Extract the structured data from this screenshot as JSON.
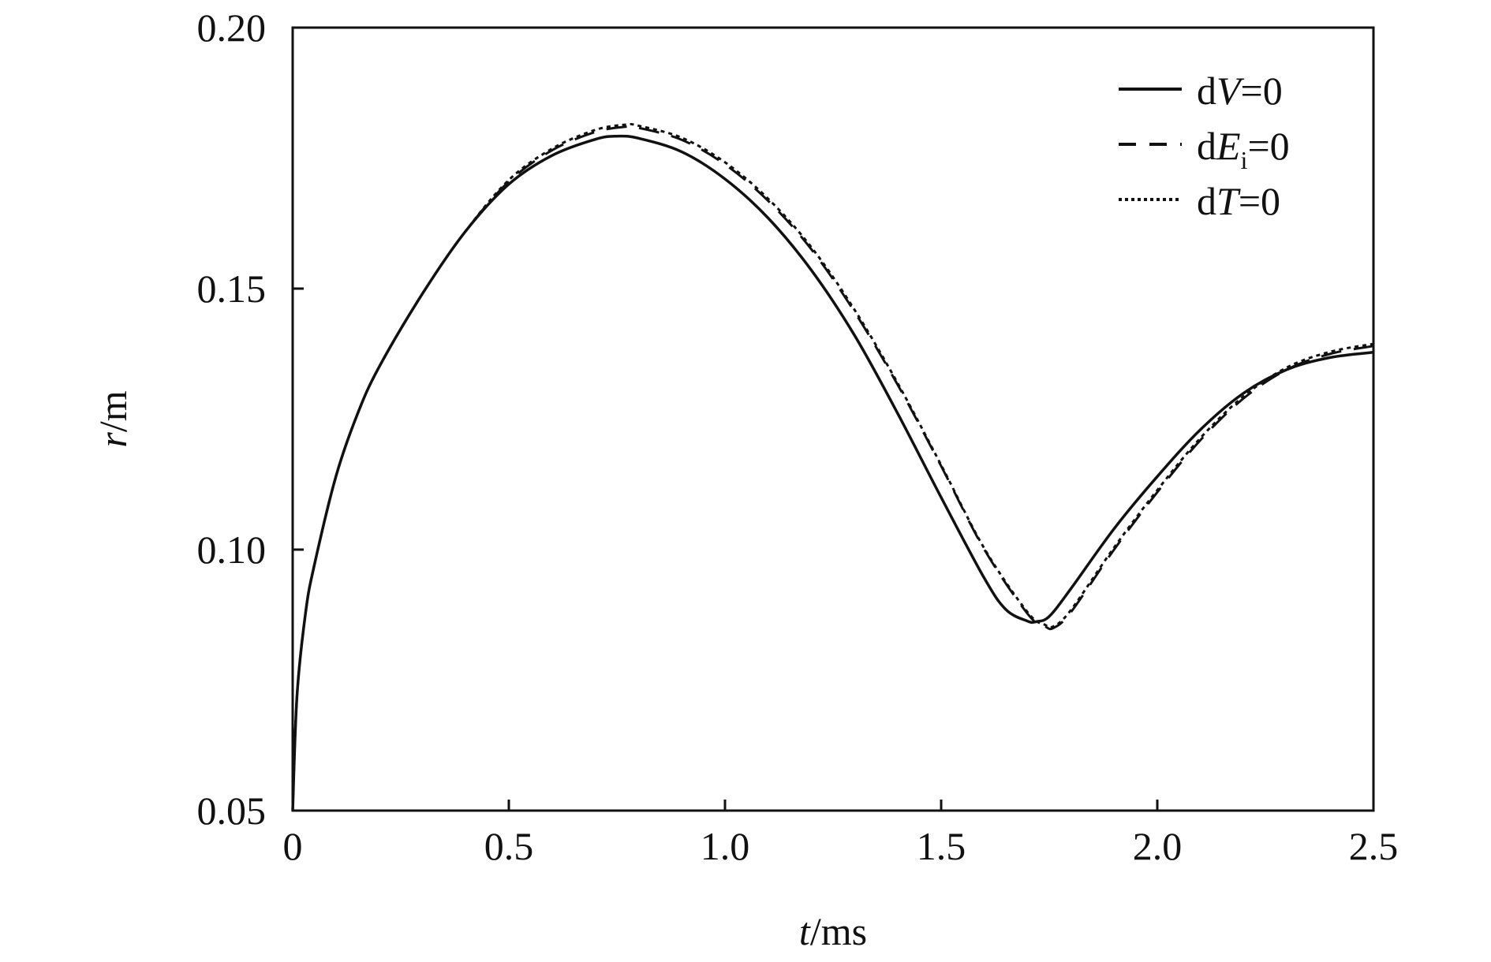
{
  "chart_data": {
    "type": "line",
    "title": "",
    "xlabel": {
      "var": "t",
      "unit": "/ms"
    },
    "ylabel": {
      "var": "r",
      "unit": "/m"
    },
    "xlim": [
      0,
      2.5
    ],
    "ylim": [
      0.05,
      0.2
    ],
    "xticks": [
      0,
      0.5,
      1.0,
      1.5,
      2.0,
      2.5
    ],
    "xtick_labels": [
      "0",
      "0.5",
      "1.0",
      "1.5",
      "2.0",
      "2.5"
    ],
    "yticks": [
      0.05,
      0.1,
      0.15,
      0.2
    ],
    "ytick_labels": [
      "0.05",
      "0.10",
      "0.15",
      "0.20"
    ],
    "grid": false,
    "legend_position": "top-right",
    "series": [
      {
        "name": "dV=0",
        "legend": {
          "pre": "d",
          "var": "V",
          "sub": "",
          "post": "=0"
        },
        "style": "solid",
        "color": "#111111",
        "x": [
          0,
          0.01,
          0.03,
          0.05,
          0.1,
          0.15,
          0.2,
          0.3,
          0.4,
          0.5,
          0.6,
          0.7,
          0.75,
          0.8,
          0.9,
          1.0,
          1.1,
          1.2,
          1.3,
          1.4,
          1.5,
          1.6,
          1.65,
          1.7,
          1.72,
          1.75,
          1.8,
          1.9,
          2.0,
          2.1,
          2.2,
          2.3,
          2.4,
          2.5
        ],
        "y": [
          0.05,
          0.072,
          0.088,
          0.097,
          0.114,
          0.126,
          0.135,
          0.149,
          0.161,
          0.17,
          0.1755,
          0.1786,
          0.1792,
          0.1788,
          0.1762,
          0.171,
          0.1635,
          0.1535,
          0.141,
          0.126,
          0.11,
          0.0945,
          0.0885,
          0.0863,
          0.0862,
          0.0872,
          0.0925,
          0.104,
          0.114,
          0.123,
          0.13,
          0.1345,
          0.1368,
          0.1378
        ]
      },
      {
        "name": "dEi=0",
        "legend": {
          "pre": "d",
          "var": "E",
          "sub": "i",
          "post": "=0"
        },
        "style": "dashed",
        "color": "#111111",
        "x": [
          0,
          0.01,
          0.03,
          0.05,
          0.1,
          0.15,
          0.2,
          0.3,
          0.4,
          0.5,
          0.6,
          0.7,
          0.77,
          0.8,
          0.9,
          1.0,
          1.1,
          1.2,
          1.3,
          1.4,
          1.5,
          1.6,
          1.7,
          1.74,
          1.76,
          1.8,
          1.9,
          2.0,
          2.1,
          2.2,
          2.3,
          2.4,
          2.5
        ],
        "y": [
          0.05,
          0.072,
          0.088,
          0.097,
          0.114,
          0.126,
          0.135,
          0.149,
          0.161,
          0.1705,
          0.1765,
          0.18,
          0.181,
          0.1808,
          0.1785,
          0.1738,
          0.1668,
          0.1575,
          0.1455,
          0.1315,
          0.116,
          0.1,
          0.0877,
          0.0853,
          0.085,
          0.088,
          0.1,
          0.111,
          0.121,
          0.129,
          0.1345,
          0.1375,
          0.139
        ]
      },
      {
        "name": "dT=0",
        "legend": {
          "pre": "d",
          "var": "T",
          "sub": "",
          "post": "=0"
        },
        "style": "dotted",
        "color": "#111111",
        "x": [
          0,
          0.01,
          0.03,
          0.05,
          0.1,
          0.15,
          0.2,
          0.3,
          0.4,
          0.5,
          0.6,
          0.7,
          0.77,
          0.8,
          0.9,
          1.0,
          1.1,
          1.2,
          1.3,
          1.4,
          1.5,
          1.6,
          1.7,
          1.74,
          1.76,
          1.8,
          1.9,
          2.0,
          2.1,
          2.2,
          2.3,
          2.4,
          2.5
        ],
        "y": [
          0.05,
          0.072,
          0.088,
          0.097,
          0.114,
          0.126,
          0.135,
          0.149,
          0.161,
          0.1708,
          0.1768,
          0.1804,
          0.1814,
          0.1812,
          0.1789,
          0.1742,
          0.1672,
          0.1579,
          0.1459,
          0.1318,
          0.1162,
          0.1002,
          0.088,
          0.0856,
          0.0853,
          0.0884,
          0.1004,
          0.1114,
          0.1214,
          0.1294,
          0.1349,
          0.1379,
          0.1394
        ]
      }
    ]
  }
}
